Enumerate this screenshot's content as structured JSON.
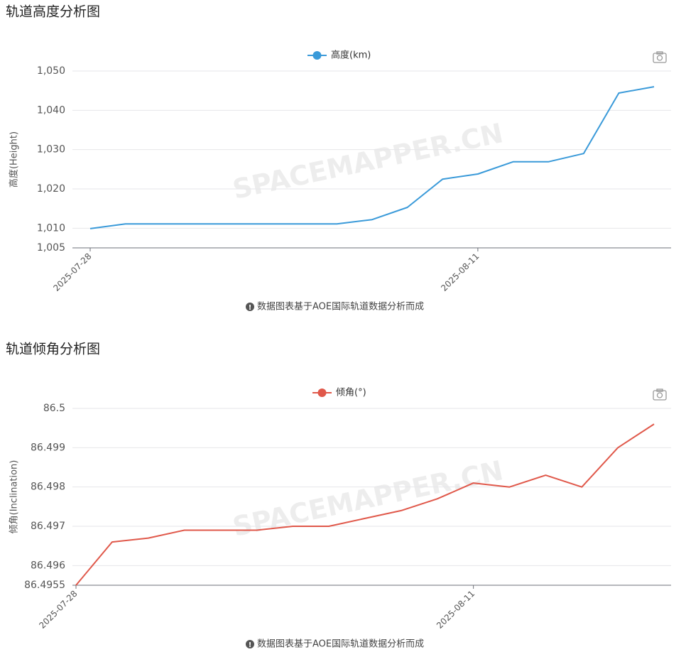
{
  "chart_data": [
    {
      "type": "line",
      "title": "轨道高度分析图",
      "y_label": "高度(Height)",
      "watermark": "SPACEMAPPER.CN",
      "note": "数据图表基于AOE国际轨道数据分析而成",
      "categories": [
        "2025-07-28",
        null,
        null,
        null,
        null,
        null,
        null,
        null,
        null,
        null,
        null,
        "2025-08-11",
        null,
        null,
        null,
        null,
        null
      ],
      "series": [
        {
          "name": "高度(km)",
          "color": "#3a9ad9",
          "values": [
            1009.9,
            1011.1,
            1011.1,
            1011.1,
            1011.1,
            1011.1,
            1011.1,
            1011.1,
            1012.2,
            1015.3,
            1022.5,
            1023.8,
            1026.9,
            1026.9,
            1029.0,
            1044.4,
            1046.0
          ]
        }
      ],
      "ylim": [
        1005,
        1050
      ],
      "yticks": [
        {
          "value": 1005,
          "label": "1,005"
        },
        {
          "value": 1010,
          "label": "1,010"
        },
        {
          "value": 1020,
          "label": "1,020"
        },
        {
          "value": 1030,
          "label": "1,030"
        },
        {
          "value": 1040,
          "label": "1,040"
        },
        {
          "value": 1050,
          "label": "1,050"
        }
      ],
      "grid": true,
      "legend": "top"
    },
    {
      "type": "line",
      "title": "轨道倾角分析图",
      "y_label": "倾角(Inclination)",
      "watermark": "SPACEMAPPER.CN",
      "note": "数据图表基于AOE国际轨道数据分析而成",
      "categories": [
        "2025-07-28",
        null,
        null,
        null,
        null,
        null,
        null,
        null,
        null,
        null,
        null,
        "2025-08-11",
        null,
        null,
        null,
        null,
        null
      ],
      "series": [
        {
          "name": "倾角(°)",
          "color": "#e0584a",
          "values": [
            86.4955,
            86.4966,
            86.4967,
            86.4969,
            86.4969,
            86.4969,
            86.497,
            86.497,
            86.4972,
            86.4974,
            86.4977,
            86.4981,
            86.498,
            86.4983,
            86.498,
            86.499,
            86.4996
          ]
        }
      ],
      "ylim": [
        86.4955,
        86.5
      ],
      "yticks": [
        86.4955,
        86.496,
        86.497,
        86.498,
        86.499,
        86.5
      ],
      "grid": true,
      "legend": "top"
    }
  ]
}
